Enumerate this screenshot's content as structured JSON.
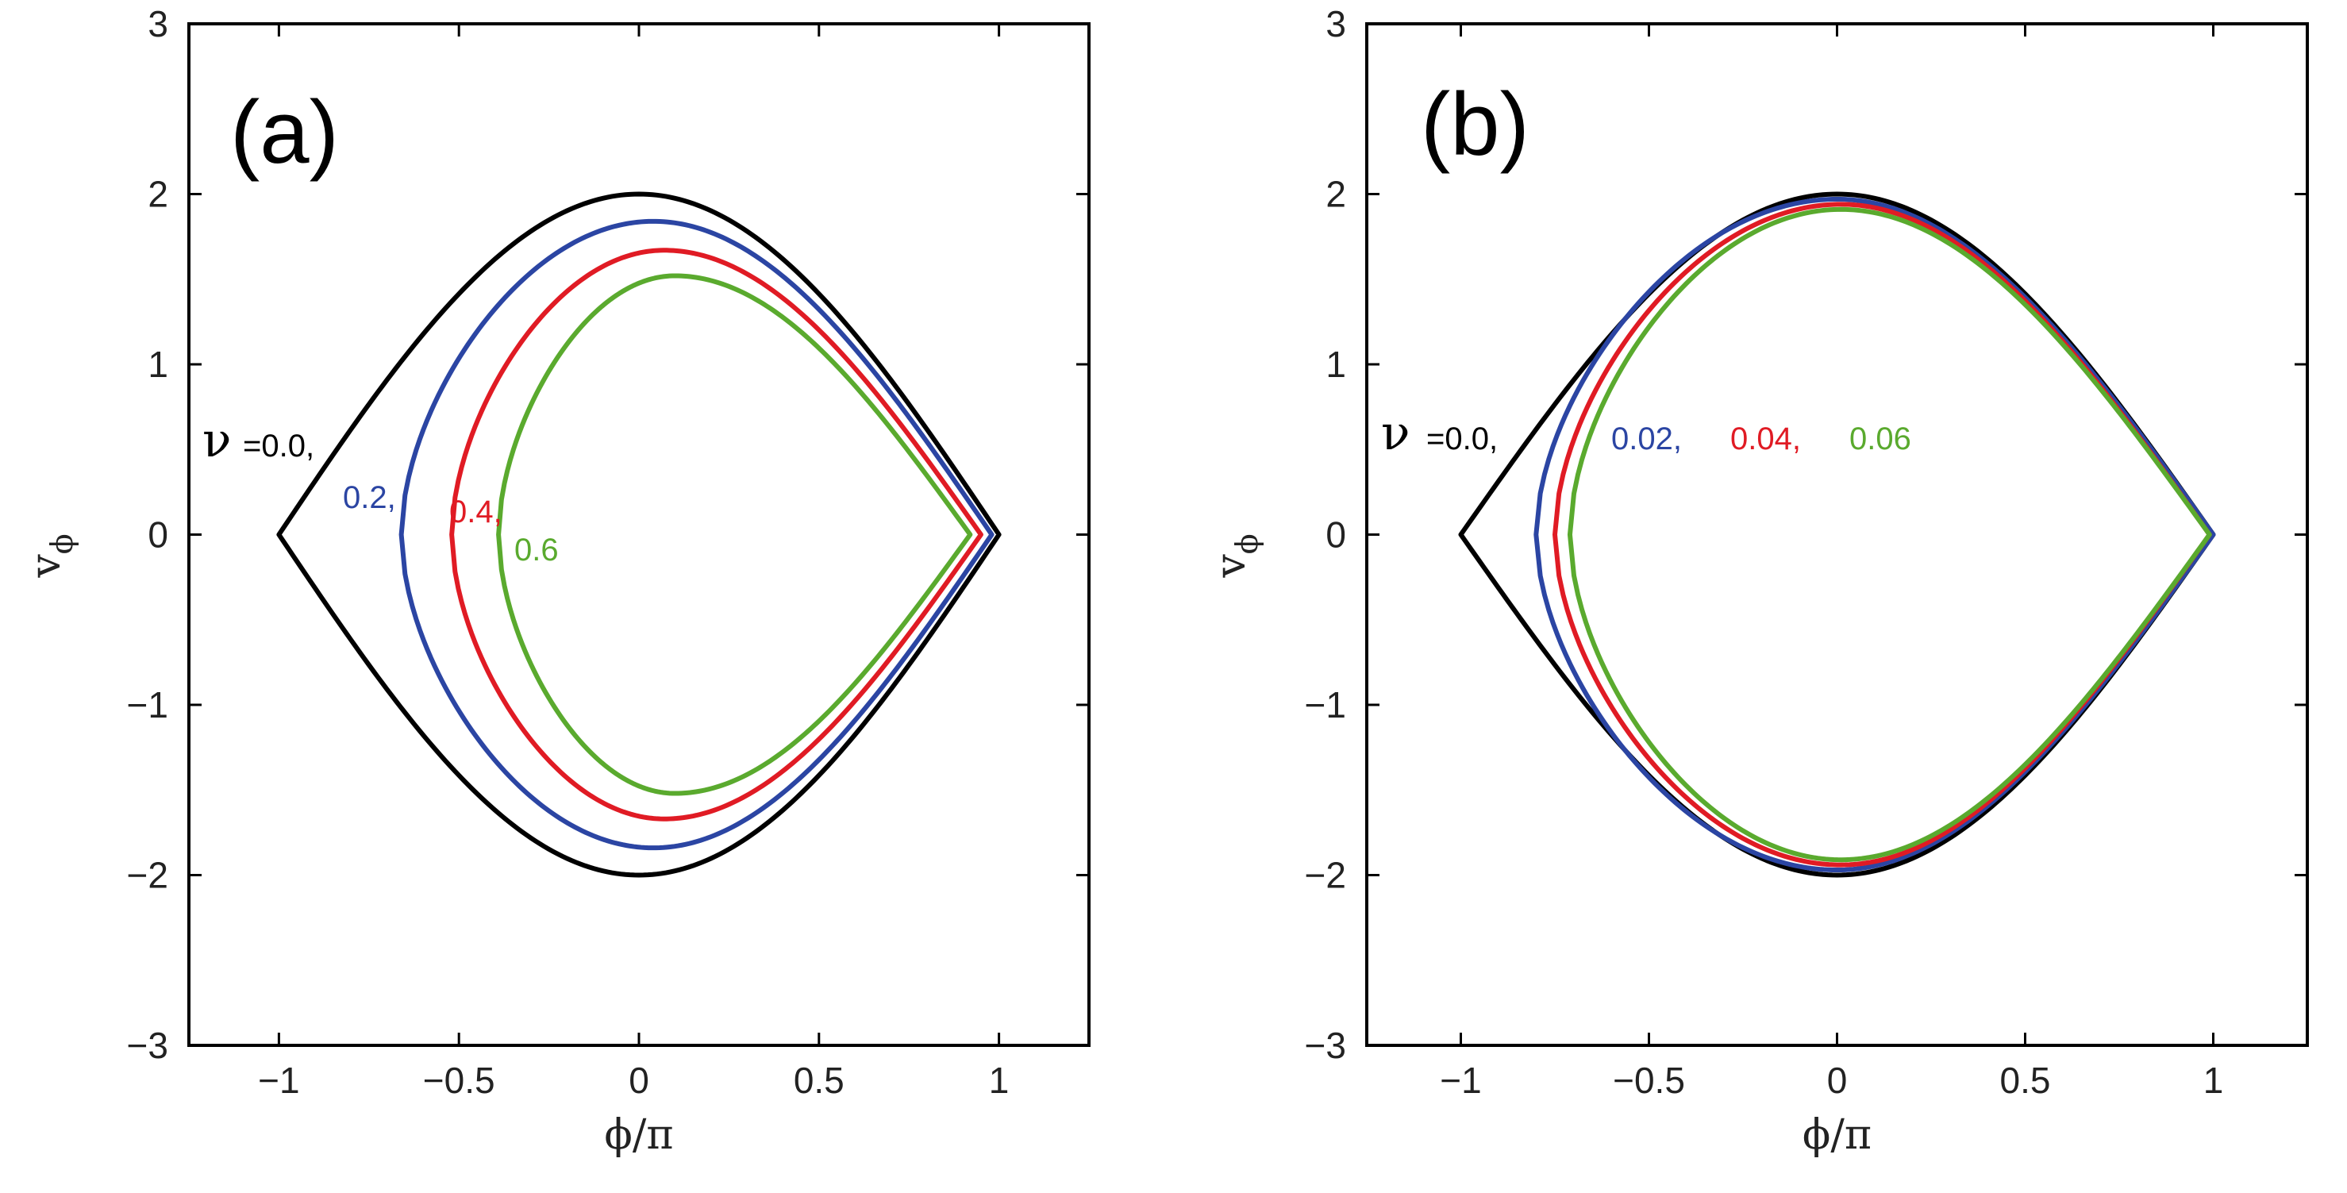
{
  "chart_data": [
    {
      "type": "line",
      "panel_label": "(a)",
      "xlabel": "ϕ/π",
      "ylabel": "v",
      "ylabel_sub": "ϕ",
      "xlim": [
        -1.25,
        1.25
      ],
      "ylim": [
        -3,
        3
      ],
      "xticks": [
        -1,
        -0.5,
        0,
        0.5,
        1
      ],
      "xtick_labels": [
        "−1",
        "−0.5",
        "0",
        "0.5",
        "1"
      ],
      "yticks": [
        -3,
        -2,
        -1,
        0,
        1,
        2,
        3
      ],
      "ytick_labels": [
        "−3",
        "−2",
        "−1",
        "0",
        "1",
        "2",
        "3"
      ],
      "nu_symbol": "ν",
      "series": [
        {
          "name": "=0.0,",
          "nu": 0.0,
          "color": "#000000",
          "x_left": -1.0,
          "x_right": 1.0,
          "x_peak": 0.0,
          "v_max": 2.0
        },
        {
          "name": "0.2,",
          "nu": 0.2,
          "color": "#2b45a3",
          "x_left": -0.66,
          "x_right": 0.98,
          "x_peak": 0.04,
          "v_max": 1.84
        },
        {
          "name": "0.4,",
          "nu": 0.4,
          "color": "#e01b24",
          "x_left": -0.52,
          "x_right": 0.95,
          "x_peak": 0.07,
          "v_max": 1.67
        },
        {
          "name": "0.6",
          "nu": 0.6,
          "color": "#5aaa2e",
          "x_left": -0.39,
          "x_right": 0.92,
          "x_peak": 0.1,
          "v_max": 1.52
        }
      ]
    },
    {
      "type": "line",
      "panel_label": "(b)",
      "xlabel": "ϕ/π",
      "ylabel": "v",
      "ylabel_sub": "ϕ",
      "xlim": [
        -1.25,
        1.25
      ],
      "ylim": [
        -3,
        3
      ],
      "xticks": [
        -1,
        -0.5,
        0,
        0.5,
        1
      ],
      "xtick_labels": [
        "−1",
        "−0.5",
        "0",
        "0.5",
        "1"
      ],
      "yticks": [
        -3,
        -2,
        -1,
        0,
        1,
        2,
        3
      ],
      "ytick_labels": [
        "−3",
        "−2",
        "−1",
        "0",
        "1",
        "2",
        "3"
      ],
      "nu_symbol": "ν",
      "series": [
        {
          "name": "=0.0,",
          "nu": 0.0,
          "color": "#000000",
          "x_left": -1.0,
          "x_right": 1.0,
          "x_peak": 0.0,
          "v_max": 2.0
        },
        {
          "name": "0.02,",
          "nu": 0.02,
          "color": "#2b45a3",
          "x_left": -0.8,
          "x_right": 1.0,
          "x_peak": 0.0,
          "v_max": 1.97
        },
        {
          "name": "0.04,",
          "nu": 0.04,
          "color": "#e01b24",
          "x_left": -0.75,
          "x_right": 0.99,
          "x_peak": 0.01,
          "v_max": 1.94
        },
        {
          "name": "0.06",
          "nu": 0.06,
          "color": "#5aaa2e",
          "x_left": -0.71,
          "x_right": 0.99,
          "x_peak": 0.01,
          "v_max": 1.91
        }
      ]
    }
  ]
}
